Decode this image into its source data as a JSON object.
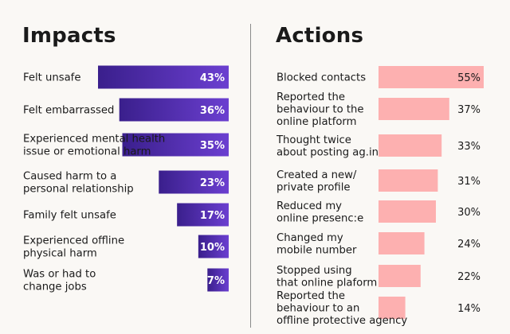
{
  "chart_data": [
    {
      "type": "bar",
      "orientation": "horizontal",
      "title": "Impacts",
      "categories": [
        "Felt unsafe",
        "Felt embarrassed",
        "Experienced mental health\nissue or emotional harm",
        "Caused harm to a\npersonal relationship",
        "Family felt unsafe",
        "Experienced offline\nphysical harm",
        "Was or had to\nchange jobs"
      ],
      "values": [
        43,
        36,
        35,
        23,
        17,
        10,
        7
      ],
      "value_labels": [
        "43%",
        "36%",
        "35%",
        "23%",
        "17%",
        "10%",
        "7%"
      ],
      "bar_color_from": "#3a1f8c",
      "bar_color_to": "#6b3fd0",
      "label_position": "inside-end",
      "label_color": "#ffffff"
    },
    {
      "type": "bar",
      "orientation": "horizontal",
      "title": "Actions",
      "categories": [
        "Blocked contacts",
        "Reported the\nbehaviour to the\nonline platform",
        "Thought twice\nabout posting ag.in",
        "Created a new/\nprivate profile",
        "Reduced my\nonline presenc:e",
        "Changed my\nmobile number",
        "Stopped using\nthat online plaform",
        "Reported the\nbehaviour to an\noffline protective agency"
      ],
      "values": [
        55,
        37,
        33,
        31,
        30,
        24,
        22,
        14
      ],
      "value_labels": [
        "55%",
        "37%",
        "33%",
        "31%",
        "30%",
        "24%",
        "22%",
        "14%"
      ],
      "bar_color": "#fdb0b0",
      "label_position": "inside-end-first-then-outside",
      "label_color": "#1a1a1a"
    }
  ]
}
